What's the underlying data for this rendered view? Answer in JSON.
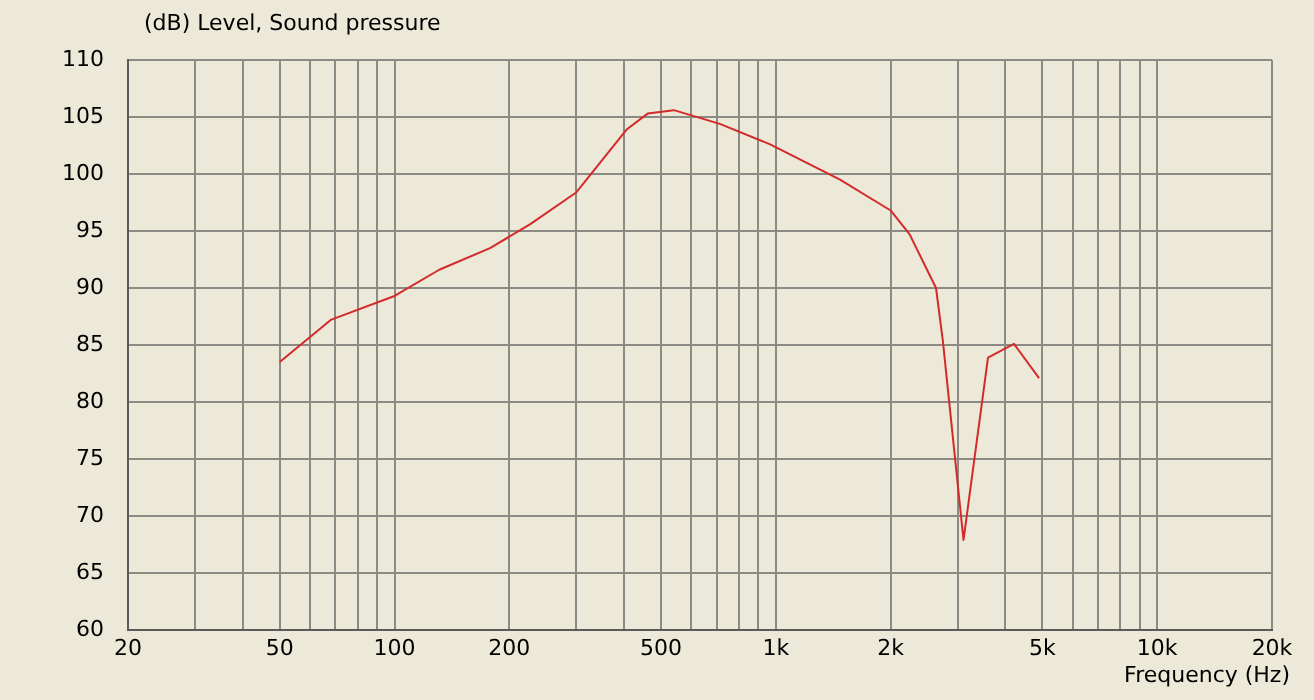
{
  "chart_data": {
    "type": "line",
    "xlabel": "Frequency  (Hz)",
    "ylabel": "(dB)  Level, Sound pressure",
    "log": "x",
    "grid": true,
    "legend": false,
    "marker": "none",
    "line_style": "solid",
    "xlim": [
      20,
      20000
    ],
    "ylim": [
      60,
      110
    ],
    "xticks": [
      20,
      {
        "value": 30,
        "label": null
      },
      {
        "value": 40,
        "label": null
      },
      50,
      {
        "value": 60,
        "label": null
      },
      {
        "value": 70,
        "label": null
      },
      {
        "value": 80,
        "label": null
      },
      {
        "value": 90,
        "label": null
      },
      100,
      200,
      {
        "value": 300,
        "label": null
      },
      {
        "value": 400,
        "label": null
      },
      500,
      {
        "value": 600,
        "label": null
      },
      {
        "value": 700,
        "label": null
      },
      {
        "value": 800,
        "label": null
      },
      {
        "value": 900,
        "label": null
      },
      {
        "value": 1000,
        "label": "1k"
      },
      {
        "value": 2000,
        "label": "2k"
      },
      {
        "value": 3000,
        "label": null
      },
      {
        "value": 4000,
        "label": null
      },
      {
        "value": 5000,
        "label": "5k"
      },
      {
        "value": 6000,
        "label": null
      },
      {
        "value": 7000,
        "label": null
      },
      {
        "value": 8000,
        "label": null
      },
      {
        "value": 9000,
        "label": null
      },
      {
        "value": 10000,
        "label": "10k"
      },
      {
        "value": 20000,
        "label": "20k"
      }
    ],
    "yticks": [
      60,
      65,
      70,
      75,
      80,
      85,
      90,
      95,
      100,
      105,
      110
    ],
    "series": [
      {
        "color": "#d42a2a",
        "x": [
          50,
          68,
          100,
          131,
          178,
          227,
          300,
          406,
          461,
          540,
          713,
          966,
          1473,
          2000,
          2243,
          2630,
          2740,
          3105,
          3600,
          4210,
          4900
        ],
        "values": [
          83.5,
          87.2,
          89.3,
          91.6,
          93.5,
          95.6,
          98.4,
          103.9,
          105.3,
          105.6,
          104.4,
          102.6,
          99.5,
          96.8,
          94.7,
          90.0,
          85.4,
          67.9,
          83.9,
          85.1,
          82.1
        ]
      }
    ]
  }
}
